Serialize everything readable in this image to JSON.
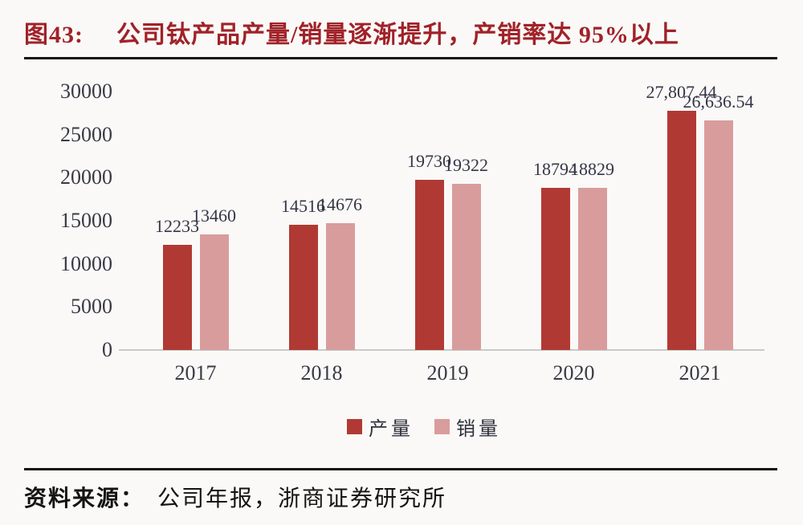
{
  "figure": {
    "label": "图43:",
    "title": "公司钛产品产量/销量逐渐提升，产销率达 95%以上"
  },
  "colors": {
    "title_red": "#a02228",
    "bar_production": "#b03a33",
    "bar_sales": "#d99c9c",
    "axis_text": "#3a3a45",
    "baseline": "#c9c9c9",
    "rule_black": "#141414"
  },
  "chart_data": {
    "type": "bar",
    "categories": [
      "2017",
      "2018",
      "2019",
      "2020",
      "2021"
    ],
    "series": [
      {
        "name": "产量",
        "color": "#b03a33",
        "values": [
          12233,
          14516,
          19730,
          18794,
          27807.44
        ],
        "labels": [
          "12233",
          "14516",
          "19730",
          "18794",
          "27,807.44"
        ]
      },
      {
        "name": "销量",
        "color": "#d99c9c",
        "values": [
          13460,
          14676,
          19322,
          18829,
          26636.54
        ],
        "labels": [
          "13460",
          "14676",
          "19322",
          "18829",
          "26,636.54"
        ]
      }
    ],
    "title": "公司钛产品产量/销量逐渐提升，产销率达 95%以上",
    "xlabel": "",
    "ylabel": "",
    "ylim": [
      0,
      30000
    ],
    "yticks": [
      {
        "value": 0,
        "label": "0"
      },
      {
        "value": 5000,
        "label": "5000"
      },
      {
        "value": 10000,
        "label": "10000"
      },
      {
        "value": 15000,
        "label": "15000"
      },
      {
        "value": 20000,
        "label": "20000"
      },
      {
        "value": 25000,
        "label": "25000"
      },
      {
        "value": 30000,
        "label": "30000"
      }
    ],
    "grid": false,
    "legend_position": "bottom"
  },
  "source": {
    "label": "资料来源：",
    "text": "公司年报，浙商证券研究所"
  }
}
